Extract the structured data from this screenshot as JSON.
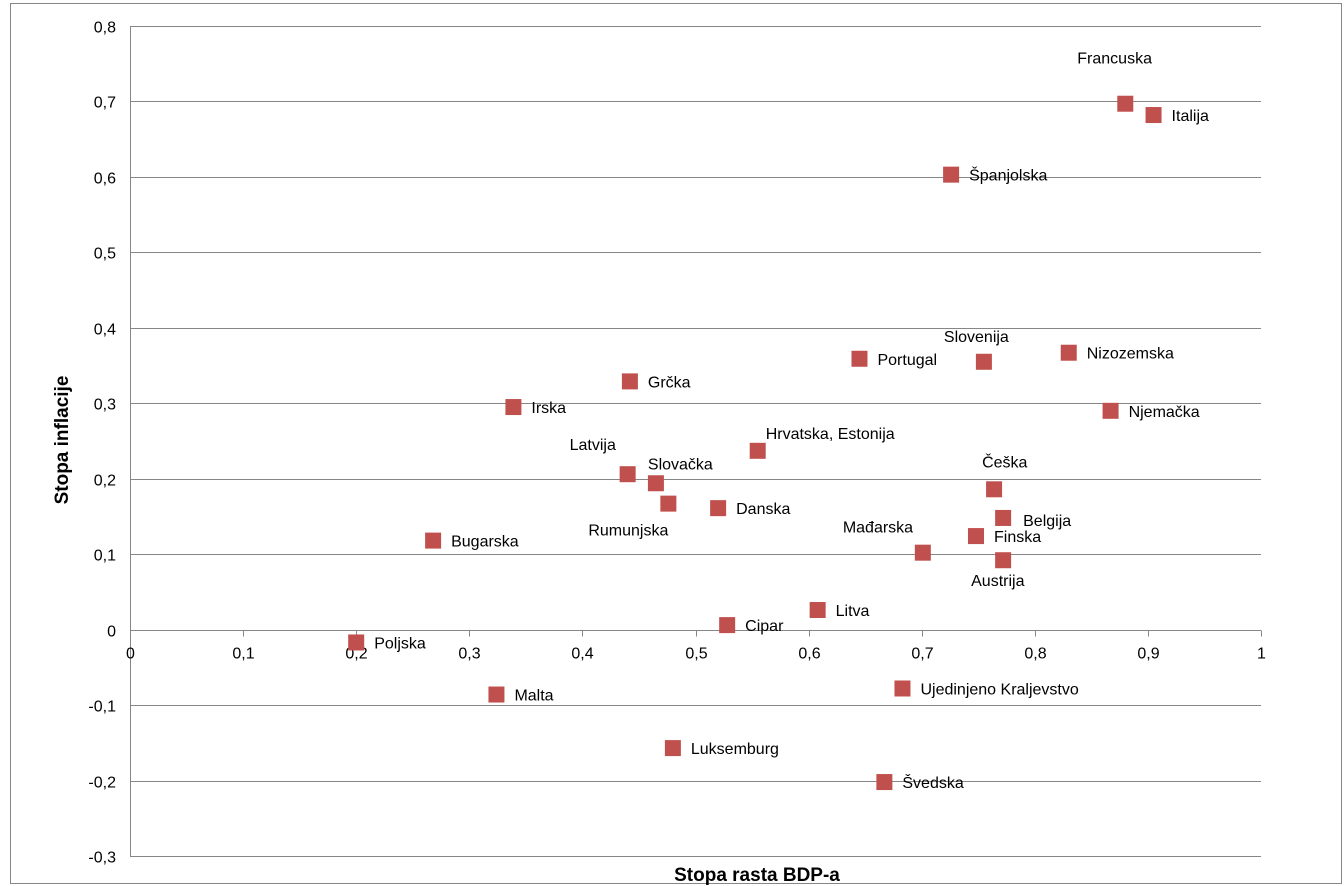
{
  "chart_data": {
    "type": "scatter",
    "xlabel": "Stopa rasta BDP-a",
    "ylabel": "Stopa inflacije",
    "xlim": [
      0,
      1
    ],
    "ylim": [
      -0.3,
      0.8
    ],
    "x_ticks": [
      "0",
      "0,1",
      "0,2",
      "0,3",
      "0,4",
      "0,5",
      "0,6",
      "0,7",
      "0,8",
      "0,9",
      "1"
    ],
    "y_ticks": [
      "0,8",
      "0,7",
      "0,6",
      "0,5",
      "0,4",
      "0,3",
      "0,2",
      "0,1",
      "0",
      "-0,1",
      "-0,2",
      "-0,3"
    ],
    "grid": "horizontal",
    "marker_color": "#c0504d",
    "points": [
      {
        "label": "Francuska",
        "x": 0.88,
        "y": 0.697
      },
      {
        "label": "Italija",
        "x": 0.905,
        "y": 0.682
      },
      {
        "label": "Španjolska",
        "x": 0.726,
        "y": 0.603
      },
      {
        "label": "Slovenija",
        "x": 0.755,
        "y": 0.355
      },
      {
        "label": "Nizozemska",
        "x": 0.83,
        "y": 0.367
      },
      {
        "label": "Portugal",
        "x": 0.645,
        "y": 0.359
      },
      {
        "label": "Grčka",
        "x": 0.442,
        "y": 0.329
      },
      {
        "label": "Irska",
        "x": 0.339,
        "y": 0.295
      },
      {
        "label": "Njemačka",
        "x": 0.867,
        "y": 0.29
      },
      {
        "label": "Hrvatska, Estonija",
        "x": 0.555,
        "y": 0.237
      },
      {
        "label": "Latvija",
        "x": 0.44,
        "y": 0.206
      },
      {
        "label": "Slovačka",
        "x": 0.465,
        "y": 0.194
      },
      {
        "label": "Rumunjska",
        "x": 0.476,
        "y": 0.167
      },
      {
        "label": "Danska",
        "x": 0.52,
        "y": 0.161
      },
      {
        "label": "Češka",
        "x": 0.764,
        "y": 0.186
      },
      {
        "label": "Belgija",
        "x": 0.772,
        "y": 0.148
      },
      {
        "label": "Finska",
        "x": 0.748,
        "y": 0.124
      },
      {
        "label": "Mađarska",
        "x": 0.701,
        "y": 0.102
      },
      {
        "label": "Austrija",
        "x": 0.772,
        "y": 0.092
      },
      {
        "label": "Bugarska",
        "x": 0.268,
        "y": 0.118
      },
      {
        "label": "Litva",
        "x": 0.608,
        "y": 0.026
      },
      {
        "label": "Cipar",
        "x": 0.528,
        "y": 0.006
      },
      {
        "label": "Poljska",
        "x": 0.2,
        "y": -0.017
      },
      {
        "label": "Malta",
        "x": 0.324,
        "y": -0.086
      },
      {
        "label": "Ujedinjeno Kraljevstvo",
        "x": 0.683,
        "y": -0.078
      },
      {
        "label": "Luksemburg",
        "x": 0.48,
        "y": -0.157
      },
      {
        "label": "Švedska",
        "x": 0.667,
        "y": -0.202
      }
    ]
  }
}
